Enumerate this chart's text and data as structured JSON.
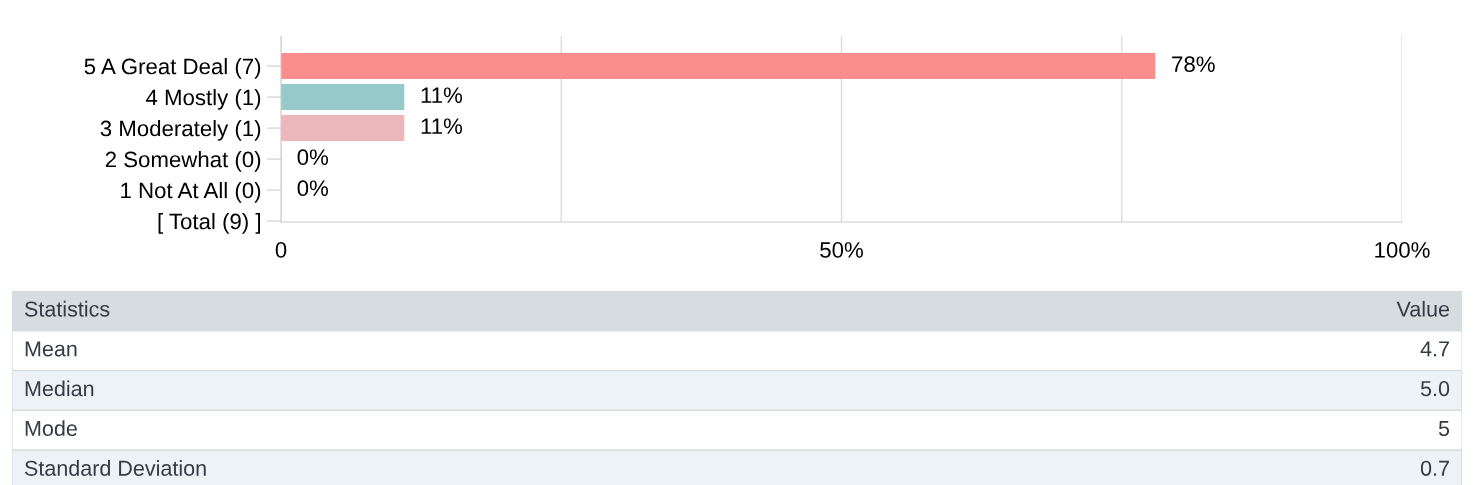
{
  "chart_data": {
    "type": "bar",
    "orientation": "horizontal",
    "categories": [
      "5 A Great Deal (7)",
      "4 Mostly (1)",
      "3 Moderately (1)",
      "2 Somewhat (0)",
      "1 Not At All (0)",
      "[ Total (9) ]"
    ],
    "values": [
      78,
      11,
      11,
      0,
      0,
      null
    ],
    "value_labels": [
      "78%",
      "11%",
      "11%",
      "0%",
      "0%",
      null
    ],
    "colors": [
      "#fc8d8d",
      "#96c9c9",
      "#ecb7bb",
      null,
      null,
      null
    ],
    "xlim": [
      0,
      100
    ],
    "xticks": [
      0,
      {
        "value": 25,
        "label": null
      },
      {
        "value": 50,
        "label": "50%"
      },
      {
        "value": 75,
        "label": null
      },
      {
        "value": 100,
        "label": "100%"
      }
    ],
    "grid": "x",
    "annotations": [
      "Statistics",
      "Value",
      "Mean",
      "4.7",
      "Median",
      "5.0",
      "Mode",
      "5",
      "Standard Deviation",
      "0.7"
    ]
  }
}
